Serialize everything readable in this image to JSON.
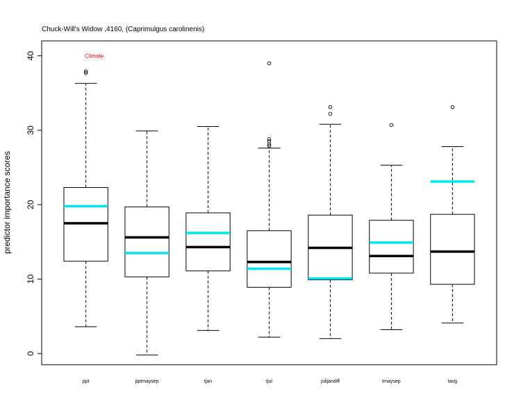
{
  "chart_data": {
    "type": "boxplot",
    "title": "Chuck-Will's Widow ,4160, (Caprimulgus carolinenis)",
    "ylabel": "predictor importance scores",
    "xlabel": "",
    "ylim": [
      -1.5,
      42
    ],
    "yticks": [
      0,
      10,
      20,
      30,
      40
    ],
    "grid": false,
    "categories": [
      "ppt",
      "pptmaysep",
      "tjan",
      "tjul",
      "julijandiff",
      "tmaysep",
      "tavg"
    ],
    "boxes": [
      {
        "name": "ppt",
        "whisker_low": 3.6,
        "q1": 12.4,
        "median": 17.5,
        "q3": 22.3,
        "whisker_high": 36.3,
        "outliers": [
          37.7,
          37.9
        ],
        "reference": 19.8
      },
      {
        "name": "pptmaysep",
        "whisker_low": -0.2,
        "q1": 10.3,
        "median": 15.6,
        "q3": 19.7,
        "whisker_high": 29.9,
        "outliers": [],
        "reference": 13.5
      },
      {
        "name": "tjan",
        "whisker_low": 3.1,
        "q1": 11.1,
        "median": 14.3,
        "q3": 18.9,
        "whisker_high": 30.5,
        "outliers": [],
        "reference": 16.2
      },
      {
        "name": "tjul",
        "whisker_low": 2.2,
        "q1": 8.9,
        "median": 12.3,
        "q3": 16.5,
        "whisker_high": 27.6,
        "outliers": [
          27.9,
          28.1,
          28.5,
          28.8,
          39.0
        ],
        "reference": 11.4
      },
      {
        "name": "julijandiff",
        "whisker_low": 2.0,
        "q1": 9.9,
        "median": 14.2,
        "q3": 18.6,
        "whisker_high": 30.8,
        "outliers": [
          32.2,
          33.1
        ],
        "reference": 10.1
      },
      {
        "name": "tmaysep",
        "whisker_low": 3.2,
        "q1": 10.8,
        "median": 13.1,
        "q3": 17.9,
        "whisker_high": 25.3,
        "outliers": [
          30.7
        ],
        "reference": 14.9
      },
      {
        "name": "tavg",
        "whisker_low": 4.1,
        "q1": 9.3,
        "median": 13.7,
        "q3": 18.7,
        "whisker_high": 27.8,
        "outliers": [
          33.1
        ],
        "reference": 23.1
      }
    ],
    "annotations": [
      {
        "text": "Climate",
        "category": "ppt",
        "y": 40.0,
        "color": "#ff0000"
      }
    ],
    "colors": {
      "box": "#000000",
      "median": "#000000",
      "reference": "#00e5ee",
      "annotation": "#ff0000"
    }
  }
}
